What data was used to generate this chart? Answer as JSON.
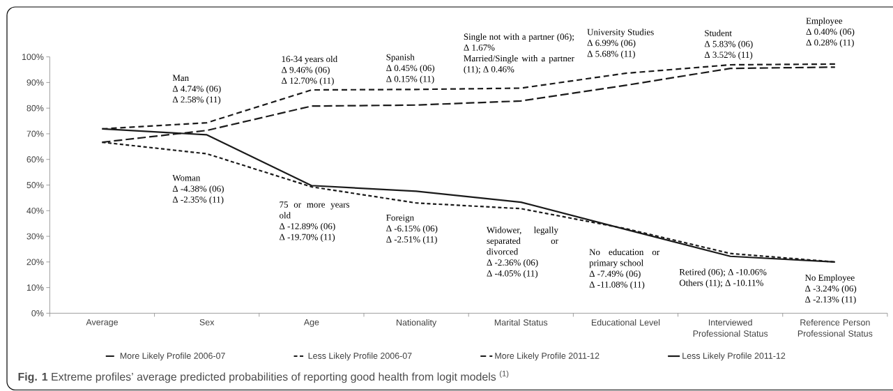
{
  "chart_data": {
    "type": "line",
    "categories": [
      "Average",
      "Sex",
      "Age",
      "Nationality",
      "Marital Status",
      "Educational Level",
      "Interviewed Professional Status",
      "Reference Person Professional Status"
    ],
    "series": [
      {
        "name": "More Likely Profile 2006-07",
        "color": "#1a1a1a",
        "line_style": "dashed",
        "values": [
          66.7,
          71.3,
          80.8,
          81.2,
          82.8,
          88.9,
          95.5,
          96.0
        ]
      },
      {
        "name": "Less Likely Profile 2006-07",
        "color": "#1a1a1a",
        "line_style": "dashed",
        "values": [
          66.7,
          62.2,
          49.3,
          43.0,
          40.8,
          33.0,
          23.3,
          20.0
        ]
      },
      {
        "name": "More Likely Profile 2011-12",
        "color": "#1a1a1a",
        "line_style": "dashed",
        "values": [
          71.9,
          74.3,
          87.1,
          87.3,
          87.8,
          93.6,
          96.9,
          97.2
        ]
      },
      {
        "name": "Less Likely Profile 2011-12",
        "color": "#1a1a1a",
        "line_style": "solid",
        "values": [
          71.9,
          69.6,
          49.8,
          47.6,
          43.3,
          32.7,
          22.2,
          20.0
        ]
      }
    ],
    "ylim": [
      0,
      100
    ],
    "yticks": [
      {
        "value": 0,
        "label": "0%"
      },
      {
        "value": 10,
        "label": "10%"
      },
      {
        "value": 20,
        "label": "20%"
      },
      {
        "value": 30,
        "label": "30%"
      },
      {
        "value": 40,
        "label": "40%"
      },
      {
        "value": 50,
        "label": "50%"
      },
      {
        "value": 60,
        "label": "60%"
      },
      {
        "value": 70,
        "label": "70%"
      },
      {
        "value": 80,
        "label": "80%"
      },
      {
        "value": 90,
        "label": "90%"
      },
      {
        "value": 100,
        "label": "100%"
      }
    ],
    "legend": "bottom",
    "annotations": [
      "Man",
      "Δ 4.74% (06)",
      "Δ 2.58% (11)",
      "Woman",
      "Δ -4.38% (06)",
      "Δ -2.35% (11)",
      "16-34 years old",
      "Δ 9.46% (06)",
      "Δ 12.70% (11)",
      "75 or more years old",
      "Δ -12.89% (06)",
      "Δ -19.70% (11)",
      "Spanish",
      "Δ 0.45% (06)",
      "Δ 0.15% (11)",
      "Foreign",
      "Δ -6.15% (06)",
      "Δ -2.51% (11)",
      "Single not with a partner (06); Δ 1.67%",
      "Married/Single with a partner (11); Δ 0.46%",
      "Widower, legally separated or divorced",
      "Δ -2.36% (06)",
      "Δ -4.05% (11)",
      "University Studies",
      "Δ 6.99% (06)",
      "Δ 5.68% (11)",
      "No education or primary school",
      "Δ -7.49% (06)",
      "Δ -11.08% (11)",
      "Student",
      "Δ 5.83% (06)",
      "Δ 3.52% (11)",
      "Retired (06); Δ -10.06%",
      "Others (11); Δ -10.11%",
      "Employee",
      "Δ 0.40% (06)",
      "Δ 0.28% (11)",
      "No Employee",
      "Δ -3.24% (06)",
      "Δ -2.13% (11)",
      "**Fig. 1** Extreme profiles’ average predicted probabilities of reporting good health from logit models $^{(1)}$"
    ]
  }
}
